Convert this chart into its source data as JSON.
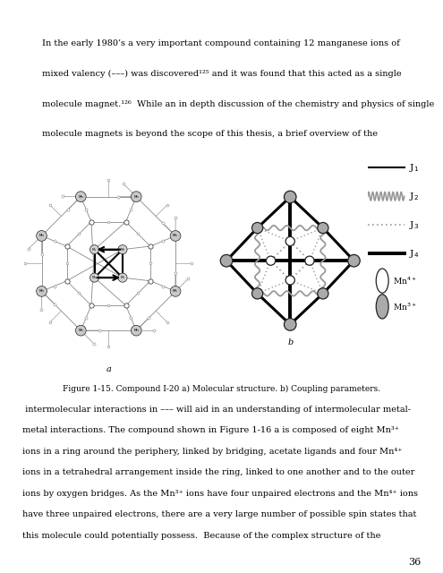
{
  "page_width": 4.95,
  "page_height": 6.4,
  "bg_color": "#ffffff",
  "figure_caption": "Figure 1-15. Compound I-20 a) Molecular structure. b) Coupling parameters.",
  "page_number": "36",
  "label_a": "a",
  "label_b": "b",
  "gray_mn": "#aaaaaa",
  "dark_c": "#222222",
  "line_gray": "#888888"
}
